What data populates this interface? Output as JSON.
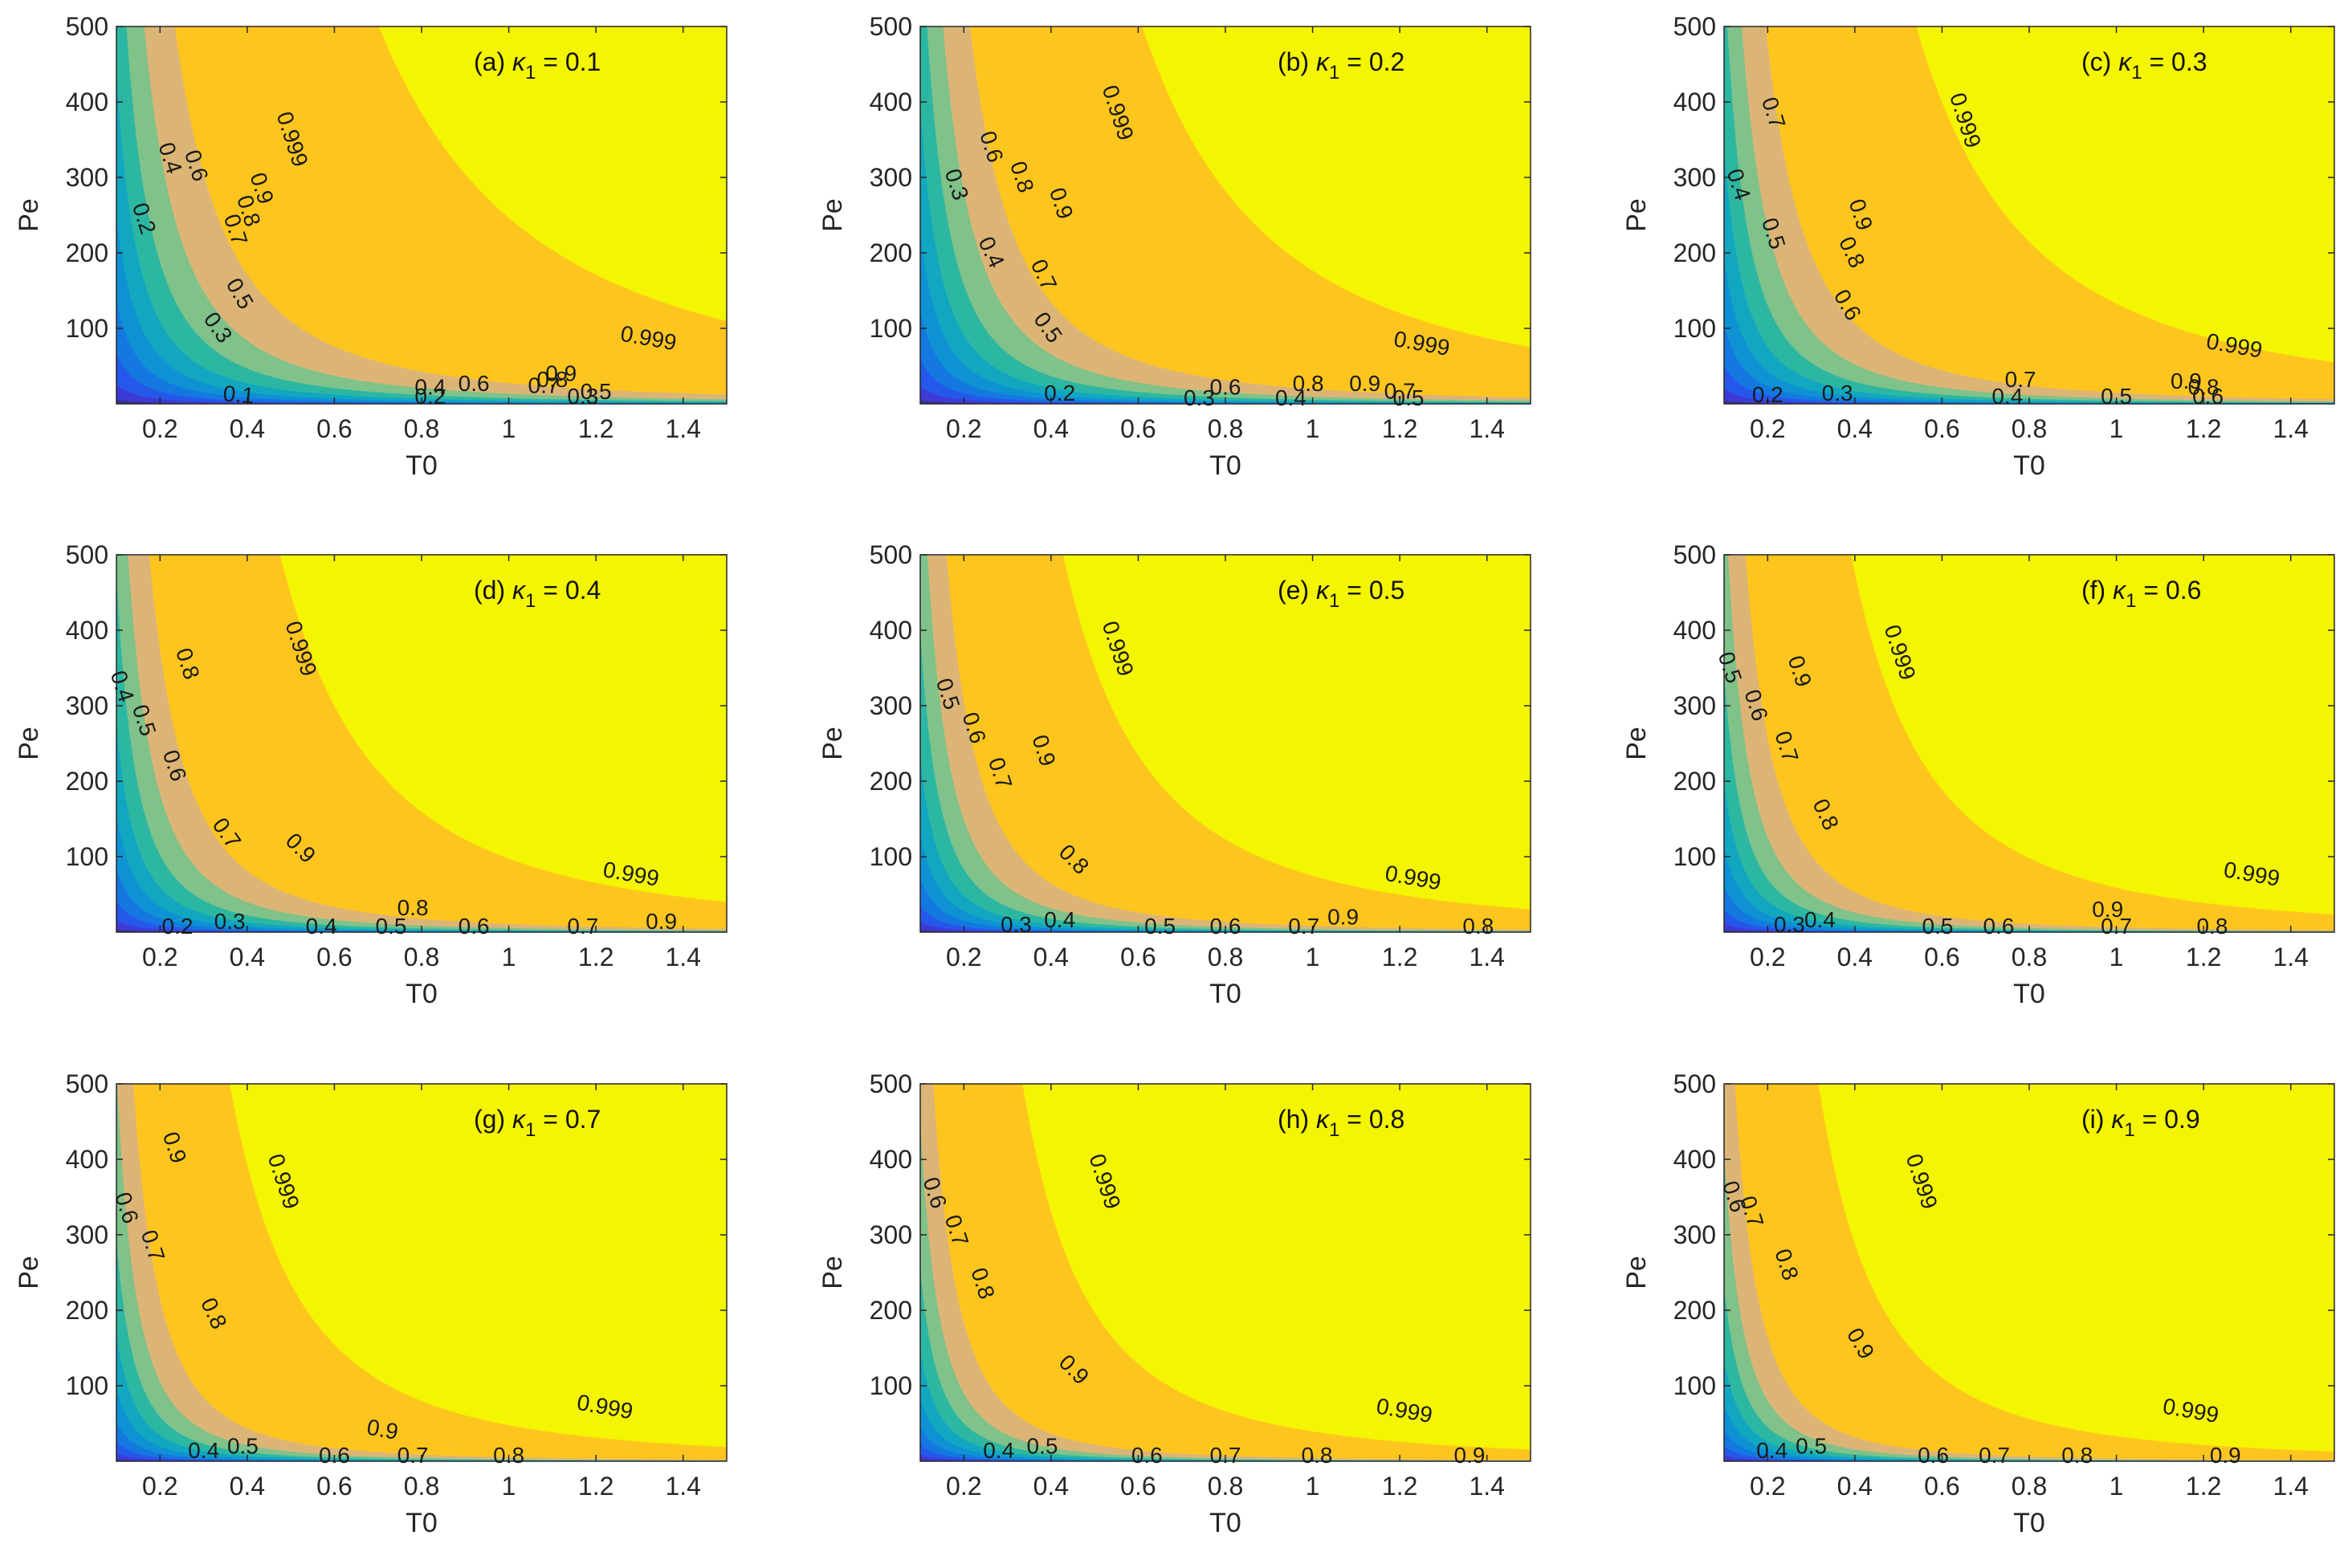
{
  "chart_data": {
    "type": "contour",
    "layout": {
      "rows": 3,
      "cols": 3
    },
    "xlabel": "T0",
    "ylabel": "Pe",
    "xlim": [
      0.1,
      1.5
    ],
    "ylim": [
      0,
      500
    ],
    "xticks": [
      0.2,
      0.4,
      0.6,
      0.8,
      1,
      1.2,
      1.4
    ],
    "xtick_labels": [
      "0.2",
      "0.4",
      "0.6",
      "0.8",
      "1",
      "1.2",
      "1.4"
    ],
    "yticks": [
      100,
      200,
      300,
      400,
      500
    ],
    "ytick_labels": [
      "100",
      "200",
      "300",
      "400",
      "500"
    ],
    "grid": false,
    "legend": "none",
    "colors": {
      "levels": [
        0,
        0.1,
        0.2,
        0.3,
        0.4,
        0.5,
        0.6,
        0.7,
        0.8,
        0.9,
        0.999
      ],
      "fills": [
        "#3b2f8f",
        "#3e3ad6",
        "#2558ea",
        "#1478e0",
        "#0e92d3",
        "#12a7c0",
        "#2cb7a2",
        "#7fc28a",
        "#dcb576",
        "#ffc51f",
        "#f4f500"
      ]
    },
    "panels": [
      {
        "label": "(a)",
        "kappa": "0.1",
        "level_labels": [
          {
            "v": "0.999",
            "x": 0.5,
            "y": 350,
            "rot": 72
          },
          {
            "v": "0.999",
            "x": 1.32,
            "y": 85,
            "rot": 10
          },
          {
            "v": "0.9",
            "x": 0.43,
            "y": 285,
            "rot": 72
          },
          {
            "v": "0.8",
            "x": 0.4,
            "y": 255,
            "rot": 72
          },
          {
            "v": "0.7",
            "x": 0.37,
            "y": 230,
            "rot": 72
          },
          {
            "v": "0.6",
            "x": 0.28,
            "y": 315,
            "rot": 72
          },
          {
            "v": "0.5",
            "x": 0.38,
            "y": 145,
            "rot": 60
          },
          {
            "v": "0.4",
            "x": 0.22,
            "y": 325,
            "rot": 72
          },
          {
            "v": "0.3",
            "x": 0.33,
            "y": 100,
            "rot": 55
          },
          {
            "v": "0.2",
            "x": 0.16,
            "y": 245,
            "rot": 72
          },
          {
            "v": "0.1",
            "x": 0.38,
            "y": 10,
            "rot": 5
          },
          {
            "v": "0.2",
            "x": 0.82,
            "y": 8,
            "rot": 0
          },
          {
            "v": "0.4",
            "x": 0.82,
            "y": 20,
            "rot": 0
          },
          {
            "v": "0.6",
            "x": 0.92,
            "y": 25,
            "rot": 0
          },
          {
            "v": "0.7",
            "x": 1.08,
            "y": 22,
            "rot": 0
          },
          {
            "v": "0.8",
            "x": 1.1,
            "y": 30,
            "rot": 0
          },
          {
            "v": "0.9",
            "x": 1.12,
            "y": 38,
            "rot": 0
          },
          {
            "v": "0.3",
            "x": 1.17,
            "y": 8,
            "rot": 0
          },
          {
            "v": "0.5",
            "x": 1.2,
            "y": 14,
            "rot": 0
          }
        ]
      },
      {
        "label": "(b)",
        "kappa": "0.2",
        "level_labels": [
          {
            "v": "0.999",
            "x": 0.55,
            "y": 385,
            "rot": 72
          },
          {
            "v": "0.999",
            "x": 1.25,
            "y": 78,
            "rot": 10
          },
          {
            "v": "0.9",
            "x": 0.42,
            "y": 265,
            "rot": 72
          },
          {
            "v": "0.8",
            "x": 0.33,
            "y": 300,
            "rot": 72
          },
          {
            "v": "0.7",
            "x": 0.38,
            "y": 170,
            "rot": 65
          },
          {
            "v": "0.6",
            "x": 0.26,
            "y": 340,
            "rot": 72
          },
          {
            "v": "0.5",
            "x": 0.39,
            "y": 100,
            "rot": 55
          },
          {
            "v": "0.4",
            "x": 0.26,
            "y": 200,
            "rot": 65
          },
          {
            "v": "0.3",
            "x": 0.18,
            "y": 290,
            "rot": 72
          },
          {
            "v": "0.2",
            "x": 0.42,
            "y": 12,
            "rot": 0
          },
          {
            "v": "0.3",
            "x": 0.74,
            "y": 6,
            "rot": 0
          },
          {
            "v": "0.6",
            "x": 0.8,
            "y": 20,
            "rot": 0
          },
          {
            "v": "0.4",
            "x": 0.95,
            "y": 6,
            "rot": 0
          },
          {
            "v": "0.8",
            "x": 0.99,
            "y": 25,
            "rot": 0
          },
          {
            "v": "0.9",
            "x": 1.12,
            "y": 25,
            "rot": 0
          },
          {
            "v": "0.7",
            "x": 1.2,
            "y": 15,
            "rot": 0
          },
          {
            "v": "0.5",
            "x": 1.22,
            "y": 6,
            "rot": 0
          }
        ]
      },
      {
        "label": "(c)",
        "kappa": "0.3",
        "level_labels": [
          {
            "v": "0.999",
            "x": 0.65,
            "y": 375,
            "rot": 72
          },
          {
            "v": "0.999",
            "x": 1.27,
            "y": 75,
            "rot": 10
          },
          {
            "v": "0.9",
            "x": 0.41,
            "y": 250,
            "rot": 72
          },
          {
            "v": "0.8",
            "x": 0.39,
            "y": 200,
            "rot": 65
          },
          {
            "v": "0.7",
            "x": 0.21,
            "y": 385,
            "rot": 72
          },
          {
            "v": "0.6",
            "x": 0.38,
            "y": 130,
            "rot": 60
          },
          {
            "v": "0.5",
            "x": 0.21,
            "y": 225,
            "rot": 72
          },
          {
            "v": "0.4",
            "x": 0.13,
            "y": 290,
            "rot": 72
          },
          {
            "v": "0.2",
            "x": 0.2,
            "y": 10,
            "rot": 0
          },
          {
            "v": "0.3",
            "x": 0.36,
            "y": 12,
            "rot": 0
          },
          {
            "v": "0.7",
            "x": 0.78,
            "y": 30,
            "rot": 0
          },
          {
            "v": "0.4",
            "x": 0.75,
            "y": 8,
            "rot": 0
          },
          {
            "v": "0.5",
            "x": 1.0,
            "y": 8,
            "rot": 0
          },
          {
            "v": "0.9",
            "x": 1.16,
            "y": 28,
            "rot": 0
          },
          {
            "v": "0.8",
            "x": 1.2,
            "y": 20,
            "rot": 0
          },
          {
            "v": "0.6",
            "x": 1.21,
            "y": 8,
            "rot": 0
          }
        ]
      },
      {
        "label": "(d)",
        "kappa": "0.4",
        "level_labels": [
          {
            "v": "0.999",
            "x": 0.52,
            "y": 375,
            "rot": 72
          },
          {
            "v": "0.999",
            "x": 1.28,
            "y": 75,
            "rot": 10
          },
          {
            "v": "0.9",
            "x": 0.52,
            "y": 110,
            "rot": 45
          },
          {
            "v": "0.8",
            "x": 0.26,
            "y": 355,
            "rot": 72
          },
          {
            "v": "0.7",
            "x": 0.35,
            "y": 130,
            "rot": 55
          },
          {
            "v": "0.6",
            "x": 0.23,
            "y": 220,
            "rot": 72
          },
          {
            "v": "0.5",
            "x": 0.16,
            "y": 280,
            "rot": 72
          },
          {
            "v": "0.4",
            "x": 0.11,
            "y": 325,
            "rot": 72
          },
          {
            "v": "0.2",
            "x": 0.24,
            "y": 6,
            "rot": 0
          },
          {
            "v": "0.3",
            "x": 0.36,
            "y": 12,
            "rot": 0
          },
          {
            "v": "0.4",
            "x": 0.57,
            "y": 6,
            "rot": 0
          },
          {
            "v": "0.5",
            "x": 0.73,
            "y": 6,
            "rot": 0
          },
          {
            "v": "0.8",
            "x": 0.78,
            "y": 30,
            "rot": 0
          },
          {
            "v": "0.6",
            "x": 0.92,
            "y": 6,
            "rot": 0
          },
          {
            "v": "0.7",
            "x": 1.17,
            "y": 6,
            "rot": 0
          },
          {
            "v": "0.9",
            "x": 1.35,
            "y": 12,
            "rot": 0
          }
        ]
      },
      {
        "label": "(e)",
        "kappa": "0.5",
        "level_labels": [
          {
            "v": "0.999",
            "x": 0.55,
            "y": 375,
            "rot": 72
          },
          {
            "v": "0.999",
            "x": 1.23,
            "y": 70,
            "rot": 10
          },
          {
            "v": "0.9",
            "x": 0.38,
            "y": 240,
            "rot": 72
          },
          {
            "v": "0.8",
            "x": 0.45,
            "y": 95,
            "rot": 45
          },
          {
            "v": "0.7",
            "x": 0.28,
            "y": 210,
            "rot": 72
          },
          {
            "v": "0.6",
            "x": 0.22,
            "y": 270,
            "rot": 72
          },
          {
            "v": "0.5",
            "x": 0.16,
            "y": 315,
            "rot": 72
          },
          {
            "v": "0.3",
            "x": 0.32,
            "y": 8,
            "rot": 0
          },
          {
            "v": "0.4",
            "x": 0.42,
            "y": 14,
            "rot": 0
          },
          {
            "v": "0.5",
            "x": 0.65,
            "y": 6,
            "rot": 0
          },
          {
            "v": "0.6",
            "x": 0.8,
            "y": 6,
            "rot": 0
          },
          {
            "v": "0.7",
            "x": 0.98,
            "y": 6,
            "rot": 0
          },
          {
            "v": "0.9",
            "x": 1.07,
            "y": 18,
            "rot": 0
          },
          {
            "v": "0.8",
            "x": 1.38,
            "y": 6,
            "rot": 0
          }
        ]
      },
      {
        "label": "(f)",
        "kappa": "0.6",
        "level_labels": [
          {
            "v": "0.999",
            "x": 0.5,
            "y": 370,
            "rot": 72
          },
          {
            "v": "0.999",
            "x": 1.31,
            "y": 75,
            "rot": 10
          },
          {
            "v": "0.9",
            "x": 0.27,
            "y": 345,
            "rot": 72
          },
          {
            "v": "0.8",
            "x": 0.33,
            "y": 155,
            "rot": 65
          },
          {
            "v": "0.7",
            "x": 0.24,
            "y": 245,
            "rot": 72
          },
          {
            "v": "0.6",
            "x": 0.17,
            "y": 300,
            "rot": 72
          },
          {
            "v": "0.5",
            "x": 0.11,
            "y": 350,
            "rot": 72
          },
          {
            "v": "0.3",
            "x": 0.25,
            "y": 8,
            "rot": 0
          },
          {
            "v": "0.4",
            "x": 0.32,
            "y": 14,
            "rot": 0
          },
          {
            "v": "0.5",
            "x": 0.59,
            "y": 6,
            "rot": 0
          },
          {
            "v": "0.6",
            "x": 0.73,
            "y": 6,
            "rot": 0
          },
          {
            "v": "0.9",
            "x": 0.98,
            "y": 28,
            "rot": 0
          },
          {
            "v": "0.7",
            "x": 1.0,
            "y": 6,
            "rot": 0
          },
          {
            "v": "0.8",
            "x": 1.22,
            "y": 6,
            "rot": 0
          }
        ]
      },
      {
        "label": "(g)",
        "kappa": "0.7",
        "level_labels": [
          {
            "v": "0.999",
            "x": 0.48,
            "y": 370,
            "rot": 72
          },
          {
            "v": "0.999",
            "x": 1.22,
            "y": 70,
            "rot": 10
          },
          {
            "v": "0.9",
            "x": 0.23,
            "y": 415,
            "rot": 72
          },
          {
            "v": "0.9",
            "x": 0.71,
            "y": 40,
            "rot": 10
          },
          {
            "v": "0.8",
            "x": 0.32,
            "y": 195,
            "rot": 65
          },
          {
            "v": "0.7",
            "x": 0.18,
            "y": 285,
            "rot": 72
          },
          {
            "v": "0.6",
            "x": 0.12,
            "y": 335,
            "rot": 72
          },
          {
            "v": "0.4",
            "x": 0.3,
            "y": 12,
            "rot": 0
          },
          {
            "v": "0.5",
            "x": 0.39,
            "y": 18,
            "rot": 0
          },
          {
            "v": "0.6",
            "x": 0.6,
            "y": 6,
            "rot": 0
          },
          {
            "v": "0.7",
            "x": 0.78,
            "y": 6,
            "rot": 0
          },
          {
            "v": "0.8",
            "x": 1.0,
            "y": 6,
            "rot": 0
          }
        ]
      },
      {
        "label": "(h)",
        "kappa": "0.8",
        "level_labels": [
          {
            "v": "0.999",
            "x": 0.52,
            "y": 370,
            "rot": 72
          },
          {
            "v": "0.999",
            "x": 1.21,
            "y": 65,
            "rot": 10
          },
          {
            "v": "0.9",
            "x": 0.45,
            "y": 120,
            "rot": 45
          },
          {
            "v": "0.8",
            "x": 0.24,
            "y": 235,
            "rot": 72
          },
          {
            "v": "0.7",
            "x": 0.18,
            "y": 305,
            "rot": 72
          },
          {
            "v": "0.6",
            "x": 0.13,
            "y": 355,
            "rot": 72
          },
          {
            "v": "0.4",
            "x": 0.28,
            "y": 12,
            "rot": 0
          },
          {
            "v": "0.5",
            "x": 0.38,
            "y": 18,
            "rot": 0
          },
          {
            "v": "0.6",
            "x": 0.62,
            "y": 6,
            "rot": 0
          },
          {
            "v": "0.7",
            "x": 0.8,
            "y": 6,
            "rot": 0
          },
          {
            "v": "0.8",
            "x": 1.01,
            "y": 6,
            "rot": 0
          },
          {
            "v": "0.9",
            "x": 1.36,
            "y": 6,
            "rot": 0
          }
        ]
      },
      {
        "label": "(i)",
        "kappa": "0.9",
        "level_labels": [
          {
            "v": "0.999",
            "x": 0.55,
            "y": 370,
            "rot": 72
          },
          {
            "v": "0.999",
            "x": 1.17,
            "y": 65,
            "rot": 10
          },
          {
            "v": "0.9",
            "x": 0.41,
            "y": 155,
            "rot": 60
          },
          {
            "v": "0.8",
            "x": 0.24,
            "y": 260,
            "rot": 72
          },
          {
            "v": "0.7",
            "x": 0.16,
            "y": 330,
            "rot": 72
          },
          {
            "v": "0.6",
            "x": 0.12,
            "y": 350,
            "rot": 72
          },
          {
            "v": "0.4",
            "x": 0.21,
            "y": 12,
            "rot": 0
          },
          {
            "v": "0.5",
            "x": 0.3,
            "y": 18,
            "rot": 0
          },
          {
            "v": "0.6",
            "x": 0.58,
            "y": 6,
            "rot": 0
          },
          {
            "v": "0.7",
            "x": 0.72,
            "y": 6,
            "rot": 0
          },
          {
            "v": "0.8",
            "x": 0.91,
            "y": 6,
            "rot": 0
          },
          {
            "v": "0.9",
            "x": 1.25,
            "y": 6,
            "rot": 0
          }
        ]
      }
    ]
  }
}
